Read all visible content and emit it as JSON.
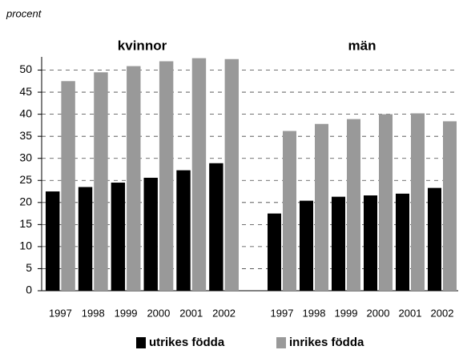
{
  "chart_data": {
    "type": "bar",
    "y_label": "procent",
    "panel_titles": [
      "kvinnor",
      "män"
    ],
    "categories": [
      "1997",
      "1998",
      "1999",
      "2000",
      "2001",
      "2002",
      "1997",
      "1998",
      "1999",
      "2000",
      "2001",
      "2002"
    ],
    "series": [
      {
        "name": "utrikes födda",
        "color": "#000000",
        "values": [
          22.5,
          23.5,
          24.5,
          25.6,
          27.3,
          28.9,
          17.5,
          20.4,
          21.3,
          21.6,
          22,
          23.3
        ]
      },
      {
        "name": "inrikes födda",
        "color": "#999999",
        "values": [
          47.5,
          49.5,
          50.9,
          52,
          52.7,
          52.5,
          36.2,
          37.8,
          38.9,
          40,
          40.2,
          38.4
        ]
      }
    ],
    "ylim": [
      0,
      53
    ],
    "yticks": [
      0,
      5,
      10,
      15,
      20,
      25,
      30,
      35,
      40,
      45,
      50
    ],
    "grid": true,
    "legend": "bottom"
  }
}
